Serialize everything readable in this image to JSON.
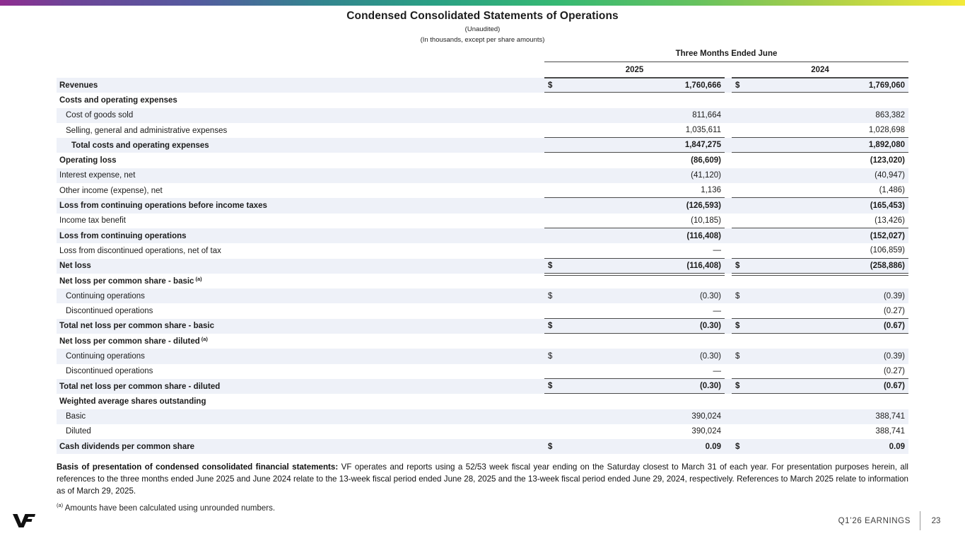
{
  "slide": {
    "title": "Condensed Consolidated Statements of Operations",
    "subtitle1": "(Unaudited)",
    "subtitle2": "(In thousands, except per share amounts)"
  },
  "table": {
    "period_header": "Three Months Ended June",
    "col_years": [
      "2025",
      "2024"
    ],
    "rows": [
      {
        "label": "Revenues",
        "bold": true,
        "shaded": true,
        "dollar": true,
        "v2025": "1,760,666",
        "v2024": "1,769,060",
        "border": "tb"
      },
      {
        "label": "Costs and operating expenses",
        "bold": true,
        "v2025": "",
        "v2024": "",
        "border": "none"
      },
      {
        "label": "Cost of goods sold",
        "indent": 1,
        "shaded": true,
        "v2025": "811,664",
        "v2024": "863,382",
        "border": "none"
      },
      {
        "label": "Selling, general and administrative expenses",
        "indent": 1,
        "v2025": "1,035,611",
        "v2024": "1,028,698",
        "border": "b"
      },
      {
        "label": "Total costs and operating expenses",
        "bold": true,
        "indent": 2,
        "shaded": true,
        "v2025": "1,847,275",
        "v2024": "1,892,080",
        "border": "b"
      },
      {
        "label": "Operating loss",
        "bold": true,
        "v2025": "(86,609)",
        "v2024": "(123,020)",
        "border": "none"
      },
      {
        "label": "Interest expense, net",
        "shaded": true,
        "v2025": "(41,120)",
        "v2024": "(40,947)",
        "border": "none"
      },
      {
        "label": "Other income (expense), net",
        "v2025": "1,136",
        "v2024": "(1,486)",
        "border": "b"
      },
      {
        "label": "Loss from continuing operations before income taxes",
        "bold": true,
        "shaded": true,
        "v2025": "(126,593)",
        "v2024": "(165,453)",
        "border": "none"
      },
      {
        "label": "Income tax benefit",
        "v2025": "(10,185)",
        "v2024": "(13,426)",
        "border": "b"
      },
      {
        "label": "Loss from continuing operations",
        "bold": true,
        "shaded": true,
        "v2025": "(116,408)",
        "v2024": "(152,027)",
        "border": "none"
      },
      {
        "label": "Loss from discontinued operations, net of tax",
        "v2025": "—",
        "v2024": "(106,859)",
        "border": "b"
      },
      {
        "label": "Net loss",
        "bold": true,
        "shaded": true,
        "dollar": true,
        "v2025": "(116,408)",
        "v2024": "(258,886)",
        "border": "dbl"
      },
      {
        "label": "Net loss per common share - basic",
        "sup": "(a)",
        "bold": true,
        "v2025": "",
        "v2024": "",
        "border": "none"
      },
      {
        "label": "Continuing operations",
        "indent": 1,
        "shaded": true,
        "dollar": true,
        "v2025": "(0.30)",
        "v2024": "(0.39)",
        "border": "none"
      },
      {
        "label": "Discontinued operations",
        "indent": 1,
        "v2025": "—",
        "v2024": "(0.27)",
        "border": "b"
      },
      {
        "label": "Total net loss per common share - basic",
        "bold": true,
        "shaded": true,
        "dollar": true,
        "v2025": "(0.30)",
        "v2024": "(0.67)",
        "border": "b"
      },
      {
        "label": "Net loss per common share - diluted",
        "sup": "(a)",
        "bold": true,
        "v2025": "",
        "v2024": "",
        "border": "none"
      },
      {
        "label": "Continuing operations",
        "indent": 1,
        "shaded": true,
        "dollar": true,
        "v2025": "(0.30)",
        "v2024": "(0.39)",
        "border": "none"
      },
      {
        "label": "Discontinued operations",
        "indent": 1,
        "v2025": "—",
        "v2024": "(0.27)",
        "border": "b"
      },
      {
        "label": "Total net loss per common share - diluted",
        "bold": true,
        "shaded": true,
        "dollar": true,
        "v2025": "(0.30)",
        "v2024": "(0.67)",
        "border": "b"
      },
      {
        "label": "Weighted average shares outstanding",
        "bold": true,
        "v2025": "",
        "v2024": "",
        "border": "none"
      },
      {
        "label": "Basic",
        "indent": 1,
        "shaded": true,
        "v2025": "390,024",
        "v2024": "388,741",
        "border": "none"
      },
      {
        "label": "Diluted",
        "indent": 1,
        "v2025": "390,024",
        "v2024": "388,741",
        "border": "none"
      },
      {
        "label": "Cash dividends per common share",
        "bold": true,
        "shaded": true,
        "dollar": true,
        "v2025": "0.09",
        "v2024": "0.09",
        "border": "none"
      }
    ]
  },
  "notes": {
    "basis_bold": "Basis of presentation of condensed consolidated financial statements:",
    "basis_text": " VF operates and reports using a 52/53 week fiscal year ending on the Saturday closest to March 31 of each year. For presentation purposes herein, all references to the three months ended June 2025 and June 2024 relate to the 13-week fiscal period ended June 28, 2025 and the 13-week fiscal period ended June 29, 2024, respectively. References to March 2025 relate to information as of March 29, 2025.",
    "marker": "(a)",
    "footnote": " Amounts have been calculated using unrounded numbers."
  },
  "footer": {
    "brand": "VF",
    "label": "Q1’26 EARNINGS",
    "page": "23"
  },
  "colors": {
    "row_shade": "#eef1f8",
    "table_border": "#4a4a4a",
    "gradient": [
      "#8f2d90",
      "#555a9f",
      "#2aa084",
      "#36b973",
      "#a5cd4a",
      "#f4ea39"
    ]
  }
}
